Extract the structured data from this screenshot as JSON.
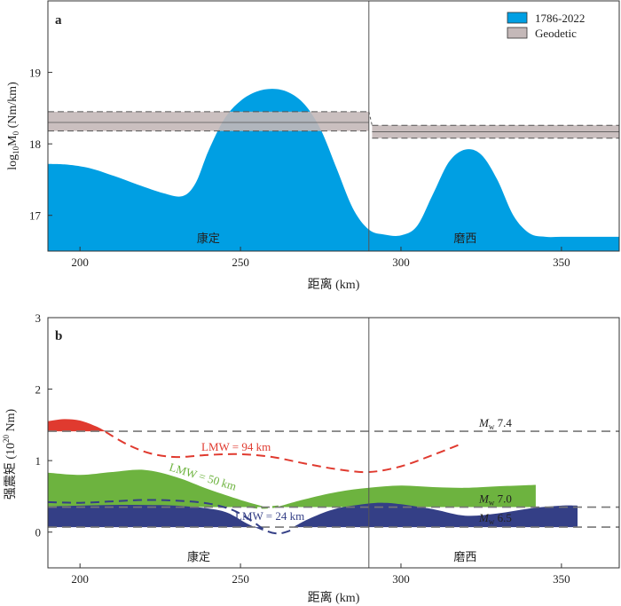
{
  "chart_data": [
    {
      "panel": "a",
      "type": "area",
      "xlabel": "距离 (km)",
      "ylabel_main": "log",
      "ylabel_sub": "10",
      "ylabel_mid": "M",
      "ylabel_sub2": "0",
      "ylabel_end": " (Nm/km)",
      "xlim": [
        190,
        368
      ],
      "ylim": [
        16.5,
        20
      ],
      "xticks": [
        200,
        250,
        300,
        350
      ],
      "yticks": [
        17,
        18,
        19
      ],
      "legend": [
        {
          "label": "1786-2022",
          "color": "#009fe3"
        },
        {
          "label": "Geodetic",
          "color": "#c4b8b8"
        }
      ],
      "series": [
        {
          "name": "1786-2022",
          "color": "#009fe3",
          "x": [
            190,
            196,
            203,
            210,
            218,
            226,
            232,
            236,
            240,
            245,
            250,
            255,
            260,
            265,
            270,
            275,
            280,
            285,
            290,
            295,
            300,
            305,
            310,
            315,
            320,
            325,
            330,
            335,
            340,
            345,
            350,
            355,
            360,
            368
          ],
          "y": [
            17.72,
            17.71,
            17.66,
            17.56,
            17.43,
            17.31,
            17.27,
            17.45,
            17.9,
            18.35,
            18.6,
            18.73,
            18.77,
            18.72,
            18.55,
            18.2,
            17.65,
            17.1,
            16.8,
            16.73,
            16.72,
            16.85,
            17.3,
            17.75,
            17.92,
            17.85,
            17.5,
            17.0,
            16.75,
            16.7,
            16.7,
            16.7,
            16.7,
            16.7
          ]
        }
      ],
      "geodetic_band": [
        {
          "x": [
            190,
            290
          ],
          "lower": 18.18,
          "upper": 18.45,
          "center": 18.3
        },
        {
          "x": [
            291,
            368
          ],
          "lower": 18.08,
          "upper": 18.26,
          "center": 18.17
        }
      ],
      "boundary_x": 290,
      "region_labels": [
        {
          "text": "康定",
          "x": 240
        },
        {
          "text": "磨西",
          "x": 320
        }
      ],
      "panel_label": "a"
    },
    {
      "panel": "b",
      "type": "area",
      "xlabel": "距离 (km)",
      "ylabel_main": "强震矩 (10",
      "ylabel_sup": "20",
      "ylabel_end": " Nm)",
      "xlim": [
        190,
        368
      ],
      "ylim": [
        -0.5,
        3
      ],
      "xticks": [
        200,
        250,
        300,
        350
      ],
      "yticks": [
        0,
        1,
        2,
        3
      ],
      "reference_lines": [
        {
          "y": 1.41,
          "label_M": "M",
          "label_w": "w",
          "label_val": " 7.4"
        },
        {
          "y": 0.35,
          "label_M": "M",
          "label_w": "w",
          "label_val": " 7.0"
        },
        {
          "y": 0.07,
          "label_M": "M",
          "label_w": "w",
          "label_val": " 6.5"
        }
      ],
      "series": [
        {
          "name": "LMW = 94 km",
          "color": "#e03a2f",
          "fill_x": [
            190,
            195,
            200,
            205,
            208
          ],
          "fill_top": [
            1.55,
            1.58,
            1.56,
            1.48,
            1.41
          ],
          "dash_x": [
            208,
            215,
            222,
            230,
            240,
            250,
            260,
            270,
            280,
            290,
            300,
            310,
            318
          ],
          "dash_y": [
            1.4,
            1.22,
            1.1,
            1.05,
            1.08,
            1.09,
            1.05,
            0.96,
            0.88,
            0.84,
            0.92,
            1.08,
            1.22
          ]
        },
        {
          "name": "LMW = 50 km",
          "color": "#6db33f",
          "fill_left_x": [
            190,
            200,
            210,
            220,
            230,
            240,
            250,
            257
          ],
          "fill_left_top": [
            0.83,
            0.8,
            0.84,
            0.87,
            0.77,
            0.6,
            0.45,
            0.36
          ],
          "fill_right_x": [
            262,
            270,
            280,
            290,
            300,
            310,
            320,
            330,
            342
          ],
          "fill_right_top": [
            0.36,
            0.46,
            0.56,
            0.62,
            0.65,
            0.63,
            0.62,
            0.64,
            0.66
          ]
        },
        {
          "name": "LMW = 24 km",
          "color": "#343f86",
          "fill_left_x": [
            190,
            200,
            210,
            220,
            230,
            240,
            246,
            252,
            257
          ],
          "fill_left_top": [
            0.36,
            0.37,
            0.38,
            0.38,
            0.37,
            0.33,
            0.27,
            0.12,
            0.02
          ],
          "dash_x": [
            190,
            200,
            210,
            220,
            230,
            240,
            248,
            254,
            258,
            262,
            266
          ],
          "dash_y": [
            0.42,
            0.41,
            0.43,
            0.45,
            0.44,
            0.4,
            0.3,
            0.14,
            0.02,
            -0.02,
            0.03
          ],
          "fill_right_x": [
            266,
            272,
            280,
            290,
            295,
            300,
            310,
            320,
            330,
            340,
            350,
            355
          ],
          "fill_right_top": [
            0.06,
            0.2,
            0.33,
            0.4,
            0.41,
            0.39,
            0.32,
            0.23,
            0.26,
            0.33,
            0.37,
            0.37
          ]
        }
      ],
      "series_labels": [
        {
          "text": "LMW = 94 km",
          "color": "#e03a2f"
        },
        {
          "text": "LMW = 50 km",
          "color": "#6db33f"
        },
        {
          "text": "LMW = 24 km",
          "color": "#343f86"
        }
      ],
      "boundary_x": 290,
      "region_labels": [
        {
          "text": "康定",
          "x": 237
        },
        {
          "text": "磨西",
          "x": 320
        }
      ],
      "panel_label": "b"
    }
  ]
}
